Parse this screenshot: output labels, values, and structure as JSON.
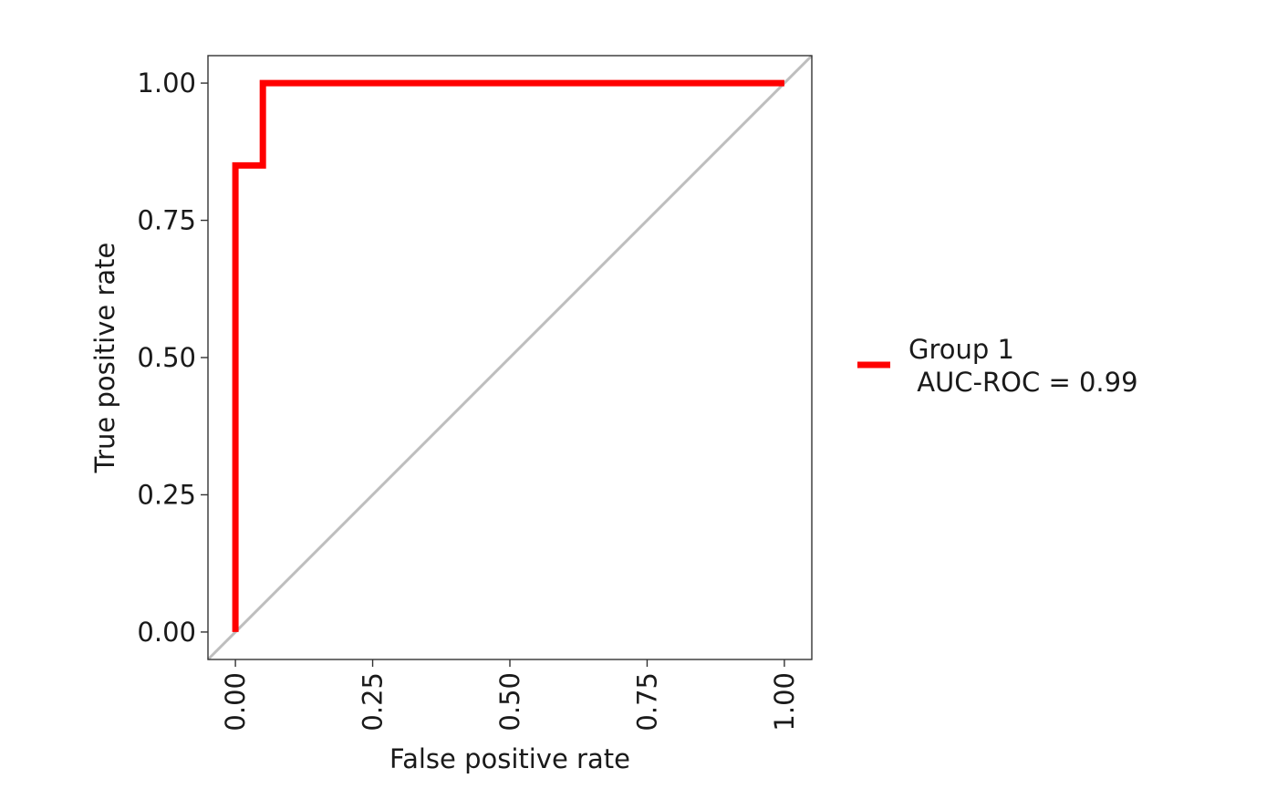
{
  "chart_data": {
    "type": "line",
    "title": "",
    "xlabel": "False positive rate",
    "ylabel": "True positive rate",
    "xlim": [
      -0.05,
      1.05
    ],
    "ylim": [
      -0.05,
      1.05
    ],
    "x_ticks": [
      "0.00",
      "0.25",
      "0.50",
      "0.75",
      "1.00"
    ],
    "y_ticks": [
      "0.00",
      "0.25",
      "0.50",
      "0.75",
      "1.00"
    ],
    "grid": false,
    "legend_position": "right",
    "reference_line": {
      "x": [
        0,
        1
      ],
      "y": [
        0,
        1
      ],
      "color": "#bebebe"
    },
    "series": [
      {
        "name": "Group 1",
        "label_lines": [
          "Group 1",
          " AUC-ROC = 0.99"
        ],
        "color": "#ff0000",
        "x": [
          0.0,
          0.0,
          0.05,
          0.05,
          1.0
        ],
        "y": [
          0.0,
          0.85,
          0.85,
          1.0,
          1.0
        ]
      }
    ]
  }
}
